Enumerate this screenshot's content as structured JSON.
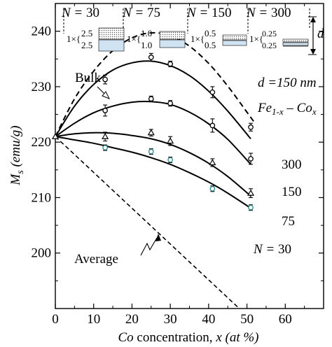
{
  "chart_data": {
    "type": "scatter",
    "xlabel_var": "Co",
    "xlabel_text": " concentration, ",
    "xlabel_unit": "x (at %)",
    "ylabel_main": "M",
    "ylabel_sub": "s",
    "ylabel_unit": " (emu/g)",
    "xlim": [
      0,
      70
    ],
    "ylim": [
      190,
      245
    ],
    "x_ticks": [
      "0",
      "10",
      "20",
      "30",
      "40",
      "50",
      "60"
    ],
    "y_ticks": [
      "200",
      "210",
      "220",
      "230",
      "240"
    ],
    "grid": false,
    "annotations": {
      "bulk": "Bulk",
      "average": "Average",
      "thickness": "d =150 nm",
      "alloy": "Fe1-x – Cox",
      "n_prefix": "N = "
    },
    "series": [
      {
        "name": "300",
        "marker": "circle",
        "color": "#000000",
        "x": [
          13,
          25,
          30,
          41,
          51
        ],
        "y": [
          231.3,
          235.3,
          234.1,
          229.0,
          222.7
        ],
        "err": [
          0.8,
          0.7,
          0.5,
          1.0,
          0.7
        ],
        "fit_x": [
          0,
          5,
          10,
          15,
          20,
          25,
          30,
          35,
          40,
          45,
          51
        ],
        "fit_y": [
          221,
          226.5,
          230.4,
          233.0,
          234.3,
          234.6,
          233.8,
          232.0,
          229.2,
          225.6,
          220.6
        ]
      },
      {
        "name": "150",
        "marker": "circle",
        "color": "#000000",
        "x": [
          13,
          25,
          30,
          41,
          51
        ],
        "y": [
          225.7,
          227.8,
          227.0,
          223.0,
          217.0
        ],
        "err": [
          1.0,
          0.5,
          0.5,
          1.2,
          1.0
        ],
        "fit_x": [
          0,
          5,
          10,
          15,
          20,
          25,
          30,
          35,
          40,
          45,
          51
        ],
        "fit_y": [
          221,
          223.4,
          225.3,
          226.5,
          227.2,
          227.3,
          226.8,
          225.4,
          223.3,
          220.5,
          216.0
        ]
      },
      {
        "name": "75",
        "marker": "triangle",
        "color": "#000000",
        "x": [
          13,
          25,
          30,
          41,
          51
        ],
        "y": [
          221.0,
          221.7,
          220.2,
          216.3,
          210.8
        ],
        "err": [
          0.8,
          0.6,
          0.8,
          0.7,
          0.8
        ],
        "fit_x": [
          0,
          5,
          10,
          15,
          20,
          25,
          30,
          35,
          40,
          45,
          51
        ],
        "fit_y": [
          221,
          221.5,
          221.7,
          221.6,
          221.2,
          220.6,
          219.6,
          218.1,
          216.2,
          213.8,
          210.3
        ]
      },
      {
        "name": "30",
        "marker": "circle",
        "color": "#2a8a8a",
        "x": [
          13,
          25,
          30,
          41,
          51
        ],
        "y": [
          219.0,
          218.3,
          216.8,
          211.6,
          208.2
        ],
        "err": [
          0.5,
          0.5,
          0.5,
          0.5,
          0.5
        ],
        "fit_x": [
          0,
          5,
          10,
          15,
          20,
          25,
          30,
          35,
          40,
          45,
          51
        ],
        "fit_y": [
          221,
          220.4,
          219.8,
          219.0,
          218.2,
          217.2,
          216.0,
          214.5,
          212.8,
          210.8,
          208.1
        ]
      }
    ],
    "bulk_curve": {
      "x": [
        0,
        5,
        10,
        15,
        20,
        25,
        30,
        35,
        40,
        45,
        50,
        52
      ],
      "y": [
        221,
        227.8,
        232.8,
        236.5,
        238.8,
        239.7,
        239.2,
        237.3,
        234.2,
        230.1,
        225.4,
        223.5
      ]
    },
    "average_line": {
      "x": [
        0,
        48
      ],
      "y": [
        221,
        190
      ]
    },
    "inset": {
      "columns": [
        {
          "n_value": "30",
          "multiplier": "1×{",
          "top": "2.5",
          "bottom": "2.5"
        },
        {
          "n_value": "75",
          "multiplier": "1×{",
          "top": "1.0",
          "bottom": "1.0"
        },
        {
          "n_value": "150",
          "multiplier": "1×{",
          "top": "0.5",
          "bottom": "0.5"
        },
        {
          "n_value": "300",
          "multiplier": "1×{",
          "top": "0.25",
          "bottom": "0.25"
        }
      ],
      "d_label": "d"
    }
  }
}
